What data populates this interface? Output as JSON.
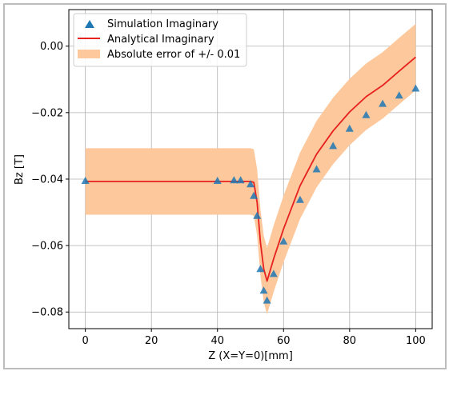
{
  "chart_data": {
    "type": "line",
    "xlabel": "Z (X=Y=0)[mm]",
    "ylabel": "Bz [T]",
    "xlim": [
      -5,
      105
    ],
    "ylim": [
      -0.085,
      0.011
    ],
    "xticks": [
      0,
      20,
      40,
      60,
      80,
      100
    ],
    "xtick_labels": [
      "0",
      "20",
      "40",
      "60",
      "80",
      "100"
    ],
    "yticks": [
      0.0,
      -0.02,
      -0.04,
      -0.06,
      -0.08
    ],
    "ytick_labels": [
      "0.00",
      "−0.02",
      "−0.04",
      "−0.06",
      "−0.08"
    ],
    "grid": true,
    "legend_position": "top-left",
    "series": [
      {
        "name": "Simulation Imaginary",
        "kind": "scatter",
        "marker": "triangle",
        "color": "#1f77b4",
        "x": [
          0,
          40,
          45,
          47,
          50,
          51,
          52,
          53,
          54,
          55,
          57,
          60,
          65,
          70,
          75,
          80,
          85,
          90,
          95,
          100
        ],
        "y": [
          -0.0405,
          -0.0405,
          -0.0403,
          -0.0403,
          -0.0415,
          -0.045,
          -0.051,
          -0.067,
          -0.0735,
          -0.0765,
          -0.0685,
          -0.0587,
          -0.0462,
          -0.037,
          -0.03,
          -0.0248,
          -0.0207,
          -0.0173,
          -0.0148,
          -0.0127
        ]
      },
      {
        "name": "Analytical Imaginary",
        "kind": "line",
        "color": "#e6211e",
        "x": [
          0,
          40,
          45,
          50,
          51,
          52,
          53,
          54,
          55,
          57,
          60,
          65,
          70,
          75,
          80,
          85,
          90,
          95,
          100
        ],
        "y": [
          -0.0407,
          -0.0407,
          -0.0407,
          -0.0407,
          -0.041,
          -0.047,
          -0.059,
          -0.067,
          -0.0707,
          -0.064,
          -0.055,
          -0.042,
          -0.0325,
          -0.0255,
          -0.0198,
          -0.0152,
          -0.0118,
          -0.0075,
          -0.0033
        ]
      },
      {
        "name": "Absolute error of +/- 0.01",
        "kind": "band",
        "color": "#fdc89c",
        "offset": 0.01
      }
    ]
  }
}
